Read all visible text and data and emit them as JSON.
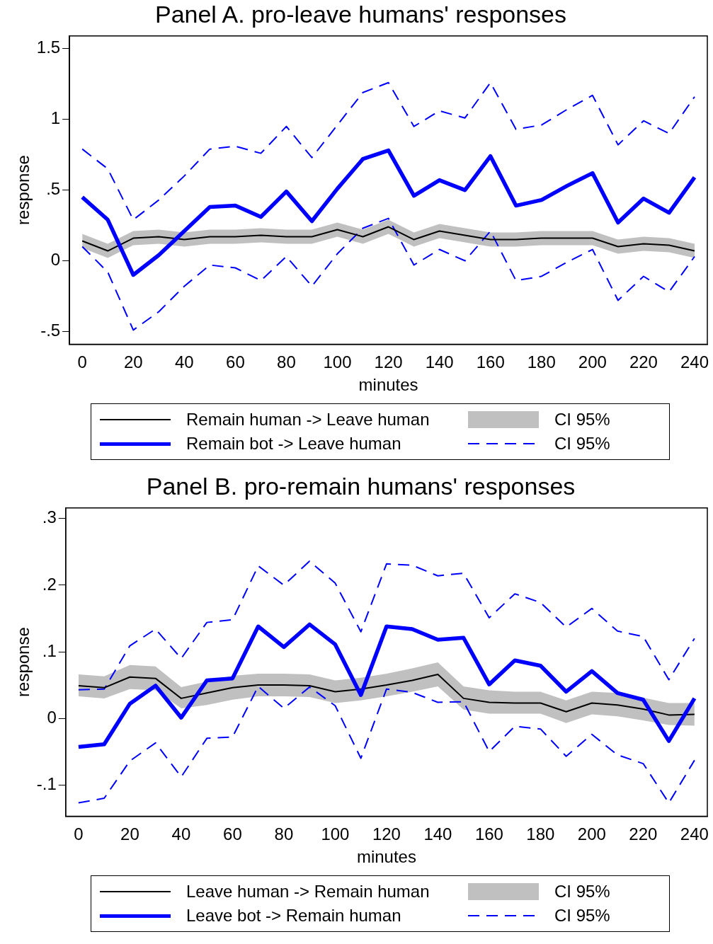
{
  "chart_data": [
    {
      "type": "line",
      "title": "Panel A. pro-leave humans' responses",
      "xlabel": "minutes",
      "ylabel": "response",
      "legend": "bottom",
      "marker": "none",
      "annotations": [
        "CI 95%"
      ],
      "x": [
        0,
        10,
        20,
        30,
        40,
        50,
        60,
        70,
        80,
        90,
        100,
        110,
        120,
        130,
        140,
        150,
        160,
        170,
        180,
        190,
        200,
        210,
        220,
        230,
        240
      ],
      "xlim": [
        -5,
        245
      ],
      "xticks": [
        0,
        20,
        40,
        60,
        80,
        100,
        120,
        140,
        160,
        180,
        200,
        220,
        240
      ],
      "ylim": [
        -0.59,
        1.59
      ],
      "yticks": [
        {
          "value": -0.5,
          "label": "-.5"
        },
        {
          "value": 0,
          "label": "0"
        },
        {
          "value": 0.5,
          "label": ".5"
        },
        {
          "value": 1,
          "label": "1"
        },
        {
          "value": 1.5,
          "label": "1.5"
        }
      ],
      "series": [
        {
          "name": "Remain human -> Leave human",
          "type": "line",
          "color": "#000000",
          "line_style": "solid",
          "values": [
            0.14,
            0.07,
            0.16,
            0.17,
            0.15,
            0.17,
            0.17,
            0.18,
            0.17,
            0.17,
            0.22,
            0.17,
            0.24,
            0.15,
            0.21,
            0.18,
            0.15,
            0.15,
            0.16,
            0.16,
            0.16,
            0.1,
            0.12,
            0.11,
            0.07
          ],
          "lower": [
            0.09,
            0.02,
            0.11,
            0.12,
            0.1,
            0.12,
            0.12,
            0.13,
            0.12,
            0.12,
            0.17,
            0.12,
            0.19,
            0.1,
            0.16,
            0.13,
            0.1,
            0.1,
            0.11,
            0.11,
            0.11,
            0.05,
            0.07,
            0.06,
            0.02
          ],
          "upper": [
            0.19,
            0.12,
            0.21,
            0.22,
            0.2,
            0.22,
            0.22,
            0.23,
            0.22,
            0.22,
            0.27,
            0.22,
            0.29,
            0.2,
            0.26,
            0.23,
            0.2,
            0.2,
            0.21,
            0.21,
            0.21,
            0.15,
            0.17,
            0.16,
            0.12
          ]
        },
        {
          "name": "Remain bot -> Leave human",
          "type": "line",
          "color": "#0000ff",
          "line_style": "solid",
          "values": [
            0.45,
            0.29,
            -0.1,
            0.04,
            0.21,
            0.38,
            0.39,
            0.31,
            0.49,
            0.28,
            0.51,
            0.72,
            0.78,
            0.46,
            0.57,
            0.5,
            0.74,
            0.39,
            0.43,
            0.53,
            0.62,
            0.27,
            0.44,
            0.34,
            0.59
          ]
        },
        {
          "name": "CI 95%",
          "type": "line",
          "color": "#0000ff",
          "line_style": "dashed",
          "values": [
            0.79,
            0.65,
            0.29,
            0.43,
            0.6,
            0.79,
            0.81,
            0.76,
            0.95,
            0.73,
            0.96,
            1.19,
            1.26,
            0.95,
            1.06,
            1.01,
            1.26,
            0.93,
            0.96,
            1.07,
            1.17,
            0.82,
            0.99,
            0.9,
            1.16
          ]
        },
        {
          "type": "line",
          "color": "#0000ff",
          "line_style": "dashed",
          "values": [
            0.1,
            -0.08,
            -0.49,
            -0.36,
            -0.18,
            -0.03,
            -0.05,
            -0.14,
            0.03,
            -0.18,
            0.05,
            0.23,
            0.3,
            -0.03,
            0.08,
            0.0,
            0.21,
            -0.14,
            -0.11,
            -0.01,
            0.08,
            -0.28,
            -0.11,
            -0.22,
            0.03
          ]
        }
      ]
    },
    {
      "type": "line",
      "title": "Panel B. pro-remain humans' responses",
      "xlabel": "minutes",
      "ylabel": "response",
      "legend": "bottom",
      "marker": "none",
      "annotations": [
        "CI 95%"
      ],
      "x": [
        0,
        10,
        20,
        30,
        40,
        50,
        60,
        70,
        80,
        90,
        100,
        110,
        120,
        130,
        140,
        150,
        160,
        170,
        180,
        190,
        200,
        210,
        220,
        230,
        240
      ],
      "xlim": [
        -5,
        245
      ],
      "xticks": [
        0,
        20,
        40,
        60,
        80,
        100,
        120,
        140,
        160,
        180,
        200,
        220,
        240
      ],
      "ylim": [
        -0.147,
        0.316
      ],
      "yticks": [
        {
          "value": -0.1,
          "label": "-.1"
        },
        {
          "value": 0,
          "label": "0"
        },
        {
          "value": 0.1,
          "label": ".1"
        },
        {
          "value": 0.2,
          "label": ".2"
        },
        {
          "value": 0.3,
          "label": ".3"
        }
      ],
      "series": [
        {
          "name": "Leave human -> Remain human",
          "type": "line",
          "color": "#000000",
          "line_style": "solid",
          "values": [
            0.049,
            0.046,
            0.062,
            0.06,
            0.03,
            0.038,
            0.046,
            0.05,
            0.05,
            0.049,
            0.04,
            0.044,
            0.05,
            0.057,
            0.066,
            0.03,
            0.024,
            0.023,
            0.023,
            0.01,
            0.023,
            0.02,
            0.014,
            0.005,
            0.006
          ],
          "lower": [
            0.033,
            0.03,
            0.044,
            0.042,
            0.015,
            0.02,
            0.028,
            0.033,
            0.033,
            0.032,
            0.023,
            0.027,
            0.033,
            0.04,
            0.048,
            0.013,
            0.007,
            0.007,
            0.007,
            -0.007,
            0.006,
            0.003,
            -0.003,
            -0.01,
            -0.011
          ],
          "upper": [
            0.066,
            0.063,
            0.08,
            0.078,
            0.047,
            0.055,
            0.064,
            0.067,
            0.067,
            0.066,
            0.057,
            0.061,
            0.067,
            0.075,
            0.084,
            0.048,
            0.042,
            0.04,
            0.04,
            0.027,
            0.04,
            0.038,
            0.031,
            0.023,
            0.023
          ]
        },
        {
          "name": "Leave bot -> Remain human",
          "type": "line",
          "color": "#0000ff",
          "line_style": "solid",
          "values": [
            -0.043,
            -0.039,
            0.022,
            0.049,
            0.001,
            0.057,
            0.06,
            0.138,
            0.107,
            0.141,
            0.111,
            0.035,
            0.138,
            0.134,
            0.118,
            0.121,
            0.051,
            0.087,
            0.079,
            0.04,
            0.071,
            0.038,
            0.028,
            -0.034,
            0.03
          ]
        },
        {
          "name": "CI 95%",
          "type": "line",
          "color": "#0000ff",
          "line_style": "dashed",
          "values": [
            0.043,
            0.044,
            0.109,
            0.134,
            0.09,
            0.144,
            0.148,
            0.229,
            0.2,
            0.236,
            0.203,
            0.13,
            0.232,
            0.23,
            0.214,
            0.218,
            0.151,
            0.187,
            0.174,
            0.137,
            0.165,
            0.131,
            0.123,
            0.058,
            0.12
          ]
        },
        {
          "type": "line",
          "color": "#0000ff",
          "line_style": "dashed",
          "values": [
            -0.127,
            -0.12,
            -0.064,
            -0.037,
            -0.088,
            -0.03,
            -0.028,
            0.048,
            0.015,
            0.047,
            0.019,
            -0.06,
            0.044,
            0.039,
            0.024,
            0.025,
            -0.05,
            -0.012,
            -0.016,
            -0.057,
            -0.024,
            -0.055,
            -0.068,
            -0.127,
            -0.063
          ]
        }
      ]
    }
  ]
}
